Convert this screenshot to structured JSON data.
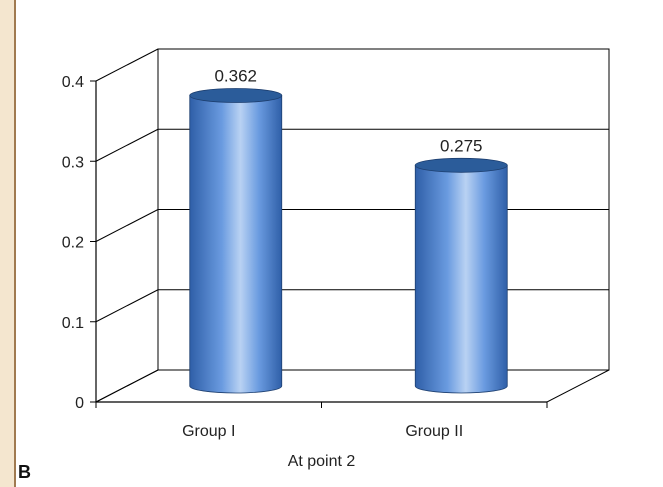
{
  "panel_label": "B",
  "chart_data": {
    "type": "bar",
    "style": "3d-cylinder",
    "categories": [
      "Group I",
      "Group II"
    ],
    "values": [
      0.362,
      0.275
    ],
    "data_labels": [
      "0.362",
      "0.275"
    ],
    "xlabel": "At point 2",
    "ylabel": "",
    "title": "",
    "ylim": [
      0,
      0.4
    ],
    "yticks": [
      0,
      0.1,
      0.2,
      0.3,
      0.4
    ],
    "ytick_labels": [
      "0",
      "0.1",
      "0.2",
      "0.3",
      "0.4"
    ],
    "grid": true,
    "legend": "none",
    "colors": {
      "bar": "#5b8fd6",
      "bar_top": "#2b5c9a",
      "grid": "#000000",
      "page_border": "#a07a50"
    }
  }
}
